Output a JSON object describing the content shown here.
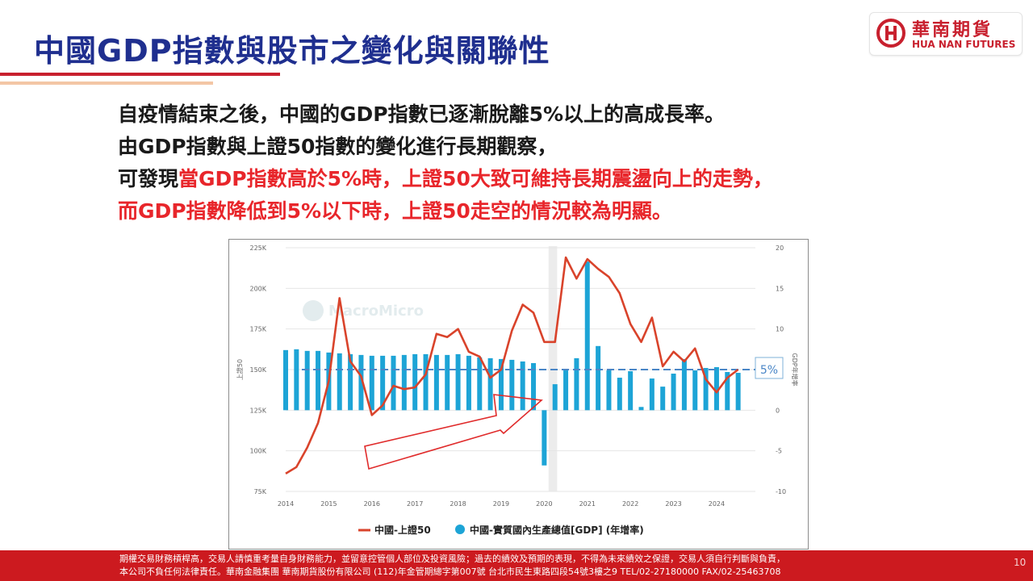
{
  "slide": {
    "title": "中國GDP指數與股市之變化與關聯性",
    "page_number": "10"
  },
  "logo": {
    "cn": "華南期貨",
    "en": "HUA NAN FUTURES"
  },
  "body": {
    "line1": "自疫情結束之後，中國的GDP指數已逐漸脫離5%以上的高成長率。",
    "line2": "由GDP指數與上證50指數的變化進行長期觀察，",
    "line3_prefix": "可發現",
    "line3_red": "當GDP指數高於5%時，上證50大致可維持長期震盪向上的走勢，",
    "line4_red": "而GDP指數降低到5%以下時，上證50走空的情況較為明顯。"
  },
  "footer": {
    "line1": "期權交易財務槓桿高，交易人請慎重考量自身財務能力，並留意控管個人部位及投資風險；過去的績效及預期的表現，不得為未來績效之保證，交易人須自行判斷與負責，",
    "line2": "本公司不負任何法律責任。華南金融集團  華南期貨股份有限公司 (112)年金管期總字第007號  台北市民生東路四段54號3樓之9  TEL/02-27180000  FAX/02-25463708"
  },
  "colors": {
    "title": "#1f2f8f",
    "accent_red": "#e8262b",
    "line_series": "#d9432b",
    "bar_series": "#1da4d6",
    "reference_line": "#4a86c7",
    "footer_bg": "#cc1a1f"
  },
  "chart_data": {
    "type": "bar+line",
    "watermark": "MacroMicro",
    "x_ticks": [
      "2014",
      "2015",
      "2016",
      "2017",
      "2018",
      "2019",
      "2020",
      "2021",
      "2022",
      "2023",
      "2024"
    ],
    "left_axis": {
      "label": "上證50",
      "ticks": [
        "225K",
        "200K",
        "175K",
        "150K",
        "125K",
        "100K",
        "75K"
      ],
      "min": 75000,
      "max": 225000
    },
    "right_axis": {
      "label": "GDP年增率",
      "ticks": [
        "20",
        "15",
        "10",
        "5",
        "0",
        "-5",
        "-10"
      ],
      "min": -10,
      "max": 20
    },
    "reference_line": {
      "value": 5,
      "label": "5%"
    },
    "shaded_period": {
      "from": 2020.1,
      "to": 2020.3
    },
    "series": [
      {
        "name": "中國-上證50",
        "kind": "line",
        "axis": "left",
        "x": [
          2014.0,
          2014.25,
          2014.5,
          2014.75,
          2015.0,
          2015.25,
          2015.5,
          2015.75,
          2016.0,
          2016.25,
          2016.5,
          2016.75,
          2017.0,
          2017.25,
          2017.5,
          2017.75,
          2018.0,
          2018.25,
          2018.5,
          2018.75,
          2019.0,
          2019.25,
          2019.5,
          2019.75,
          2020.0,
          2020.25,
          2020.5,
          2020.75,
          2021.0,
          2021.25,
          2021.5,
          2021.75,
          2022.0,
          2022.25,
          2022.5,
          2022.75,
          2023.0,
          2023.25,
          2023.5,
          2023.75,
          2024.0,
          2024.25,
          2024.5
        ],
        "y": [
          86000,
          90000,
          102000,
          117000,
          143000,
          194000,
          155000,
          146000,
          122000,
          128000,
          140000,
          138000,
          139000,
          147000,
          172000,
          170000,
          175000,
          161000,
          158000,
          145000,
          150000,
          174000,
          190000,
          185000,
          167000,
          167000,
          219000,
          206000,
          218000,
          212000,
          207000,
          197000,
          178000,
          167000,
          182000,
          152000,
          161000,
          155000,
          163000,
          144000,
          136000,
          145000,
          150000
        ]
      },
      {
        "name": "中國-實質國內生產總值[GDP] (年增率)",
        "kind": "bar",
        "axis": "right",
        "x": [
          2014.0,
          2014.25,
          2014.5,
          2014.75,
          2015.0,
          2015.25,
          2015.5,
          2015.75,
          2016.0,
          2016.25,
          2016.5,
          2016.75,
          2017.0,
          2017.25,
          2017.5,
          2017.75,
          2018.0,
          2018.25,
          2018.5,
          2018.75,
          2019.0,
          2019.25,
          2019.5,
          2019.75,
          2020.0,
          2020.25,
          2020.5,
          2020.75,
          2021.0,
          2021.25,
          2021.5,
          2021.75,
          2022.0,
          2022.25,
          2022.5,
          2022.75,
          2023.0,
          2023.25,
          2023.5,
          2023.75,
          2024.0,
          2024.25,
          2024.5
        ],
        "y": [
          7.4,
          7.5,
          7.3,
          7.3,
          7.1,
          7.0,
          6.9,
          6.8,
          6.7,
          6.7,
          6.7,
          6.8,
          6.9,
          6.9,
          6.8,
          6.8,
          6.9,
          6.7,
          6.5,
          6.4,
          6.3,
          6.2,
          6.0,
          5.8,
          -6.8,
          3.2,
          4.9,
          6.4,
          18.3,
          7.9,
          4.9,
          4.0,
          4.8,
          0.4,
          3.9,
          2.9,
          4.5,
          6.3,
          4.9,
          5.2,
          5.3,
          4.7,
          4.6
        ]
      }
    ]
  }
}
